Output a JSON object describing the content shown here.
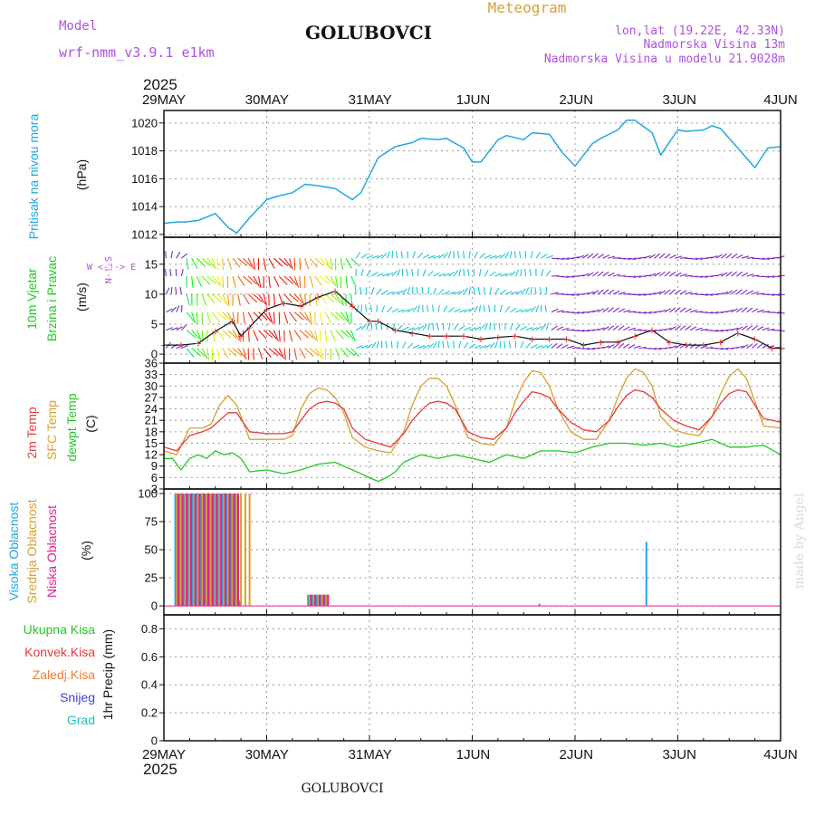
{
  "header": {
    "model_label": "Model",
    "model_value": "wrf-nmm_v3.9.1 e1km",
    "station": "GOLUBOVCI",
    "product": "Meteogram",
    "coords": "lon,lat (19.22E, 42.33N)",
    "elevation": "Nadmorska Visina 13m",
    "model_elevation": "Nadmorska Visina u modelu 21.9028m",
    "year": "2025",
    "footer_station": "GOLUBOVCI",
    "credit": "made by Angel"
  },
  "colors": {
    "pressure": "#1fa8e0",
    "temp2m": "#e83838",
    "sfc": "#d8a030",
    "dewpoint": "#22c822",
    "high_cloud": "#1fa8e0",
    "mid_cloud": "#d8a030",
    "low_cloud": "#e02090",
    "precip_total": "#22c822",
    "precip_conv": "#e83838",
    "precip_frozen": "#f07f30",
    "snow": "#4040e0",
    "graupel": "#20c0c0",
    "wind_legend": "#b050e0"
  },
  "x_axis": {
    "top_labels": [
      "29MAY",
      "30MAY",
      "31MAY",
      "1JUN",
      "2JUN",
      "3JUN",
      "4JUN"
    ],
    "bottom_labels": [
      "29MAY",
      "30MAY",
      "31MAY",
      "1JUN",
      "2JUN",
      "3JUN",
      "4JUN"
    ],
    "hours_total": 144
  },
  "panels": {
    "pressure": {
      "ylabel_a": "Pritisak na nivou mora",
      "ylabel_b": "(hPa)",
      "ticks": [
        "1012",
        "1014",
        "1016",
        "1018",
        "1020"
      ]
    },
    "wind": {
      "ylabel_a": "10m Vjetar",
      "ylabel_b": "Brzina i Pravac",
      "ylabel_c": "(m/s)",
      "legend_compass": "W <-!-> E",
      "legend_ns": "N-!-S",
      "ticks": [
        "0",
        "5",
        "10",
        "15"
      ]
    },
    "temperature": {
      "ylabel_a": "2m Temp",
      "ylabel_b": "SFC Temp",
      "ylabel_c": "dewpt Temp",
      "ylabel_d": "(C)",
      "ticks": [
        "3",
        "6",
        "9",
        "12",
        "15",
        "18",
        "21",
        "24",
        "27",
        "30",
        "33",
        "36"
      ]
    },
    "cloud": {
      "ylabel_a": "Visoka Oblacnost",
      "ylabel_b": "Srednja Oblacnost",
      "ylabel_c": "Niska Oblacnost",
      "ylabel_d": "(%)",
      "ticks": [
        "0",
        "25",
        "50",
        "75",
        "100"
      ]
    },
    "precip": {
      "legend": [
        "Ukupna Kisa",
        "Konvek.Kisa",
        "Zaledj.Kisa",
        "Snijeg",
        "Grad"
      ],
      "ylabel": "1hr Precip (mm)",
      "ticks": [
        "0",
        "0.2",
        "0.4",
        "0.6",
        "0.8"
      ]
    }
  },
  "chart_data": [
    {
      "type": "line",
      "title": "Pritisak na nivou mora",
      "ylabel": "(hPa)",
      "x_unit": "hours from 29MAY 00UTC",
      "ylim": [
        1011.8,
        1020.9
      ],
      "series": [
        {
          "x": [
            0,
            3,
            5,
            8,
            12,
            15,
            17,
            20,
            24,
            26,
            30,
            33,
            36,
            40,
            44,
            46,
            50,
            54,
            58,
            60,
            64,
            66,
            70,
            72,
            74,
            78,
            80,
            84,
            86,
            90,
            93,
            96,
            100,
            102,
            106,
            108,
            110,
            114,
            116,
            120,
            122,
            126,
            128,
            130,
            134,
            138,
            141,
            144
          ],
          "y": [
            1012.8,
            1012.9,
            1012.9,
            1013.0,
            1013.5,
            1012.5,
            1012.1,
            1013.2,
            1014.5,
            1014.7,
            1015.0,
            1015.6,
            1015.5,
            1015.3,
            1014.5,
            1015.0,
            1017.5,
            1018.3,
            1018.6,
            1018.9,
            1018.8,
            1018.9,
            1018.2,
            1017.2,
            1017.2,
            1018.8,
            1019.1,
            1018.8,
            1019.3,
            1019.2,
            1017.9,
            1016.9,
            1018.5,
            1018.9,
            1019.5,
            1020.2,
            1020.2,
            1019.3,
            1017.7,
            1019.5,
            1019.4,
            1019.5,
            1019.8,
            1019.6,
            1018.2,
            1016.8,
            1018.2,
            1018.3
          ]
        }
      ]
    },
    {
      "type": "line",
      "title": "10m Vjetar Brzina i Pravac",
      "ylabel": "(m/s)",
      "x_unit": "hours from 29MAY 00UTC",
      "ylim": [
        -1.5,
        19.5
      ],
      "series": [
        {
          "name": "wind speed",
          "x": [
            0,
            4,
            8,
            12,
            16,
            18,
            20,
            24,
            28,
            32,
            36,
            40,
            44,
            48,
            50,
            54,
            58,
            62,
            66,
            70,
            74,
            78,
            82,
            86,
            90,
            94,
            98,
            102,
            106,
            110,
            114,
            118,
            122,
            126,
            130,
            134,
            138,
            142,
            144
          ],
          "y": [
            1.5,
            1.5,
            1.8,
            3.8,
            5.5,
            3.0,
            4.5,
            7.5,
            8.5,
            8.0,
            9.5,
            10.5,
            8.0,
            5.5,
            5.5,
            4.0,
            3.5,
            3.0,
            3.0,
            3.0,
            2.5,
            2.8,
            3.0,
            2.5,
            2.5,
            2.5,
            1.5,
            2.0,
            2.0,
            3.0,
            4.0,
            2.0,
            1.5,
            1.5,
            2.0,
            3.5,
            2.5,
            1.0,
            1.0
          ]
        }
      ]
    },
    {
      "type": "line",
      "title": "2m Temp / SFC Temp / dewpt Temp",
      "ylabel": "(C)",
      "x_unit": "hours from 29MAY 00UTC",
      "ylim": [
        3,
        36
      ],
      "series": [
        {
          "name": "2m Temp",
          "x": [
            0,
            3,
            6,
            9,
            11,
            13,
            15,
            17,
            20,
            24,
            28,
            30,
            32,
            34,
            36,
            38,
            40,
            42,
            44,
            47,
            50,
            53,
            56,
            58,
            60,
            62,
            64,
            66,
            68,
            71,
            74,
            77,
            80,
            82,
            84,
            86,
            88,
            90,
            92,
            95,
            98,
            101,
            104,
            106,
            108,
            110,
            112,
            114,
            116,
            119,
            122,
            125,
            128,
            130,
            132,
            134,
            136,
            138,
            140,
            144
          ],
          "y": [
            14,
            13,
            17,
            18,
            19,
            21,
            23,
            23,
            18,
            17.5,
            17.5,
            18,
            21,
            24,
            25.5,
            26,
            25.5,
            24,
            19,
            16,
            15,
            14,
            17.5,
            21,
            23.5,
            25.5,
            26,
            25.5,
            24,
            18,
            16.5,
            16,
            19,
            23,
            26,
            28.5,
            28,
            27,
            24,
            20.5,
            18.5,
            18,
            21,
            24.5,
            27.5,
            29,
            28.5,
            27,
            24,
            21,
            19.5,
            18.5,
            22,
            25.5,
            28,
            29,
            28.5,
            25,
            21.5,
            20.5
          ]
        },
        {
          "name": "SFC Temp",
          "x": [
            0,
            3,
            6,
            9,
            11,
            13,
            15,
            17,
            20,
            24,
            28,
            30,
            32,
            34,
            36,
            38,
            40,
            42,
            44,
            47,
            50,
            53,
            56,
            58,
            60,
            62,
            64,
            66,
            68,
            71,
            74,
            77,
            80,
            82,
            84,
            86,
            88,
            90,
            92,
            95,
            98,
            101,
            104,
            106,
            108,
            110,
            112,
            114,
            116,
            119,
            122,
            125,
            128,
            130,
            132,
            134,
            136,
            138,
            140,
            144
          ],
          "y": [
            13,
            12,
            19,
            19,
            20,
            25,
            27.5,
            25,
            16,
            16,
            16,
            17,
            24,
            28,
            29.5,
            29,
            27,
            23,
            16.5,
            14,
            13,
            12.5,
            18,
            25,
            30,
            32,
            32,
            30,
            25,
            16.5,
            15,
            14.5,
            19,
            26,
            31,
            34,
            33.5,
            30,
            24,
            18,
            16,
            16,
            21,
            27,
            32,
            34.5,
            33.5,
            30,
            22,
            18.5,
            17.5,
            17,
            22,
            28,
            32.5,
            34.5,
            32,
            26,
            19.5,
            19
          ]
        },
        {
          "name": "dewpt Temp",
          "x": [
            0,
            2,
            4,
            6,
            8,
            10,
            12,
            14,
            16,
            18,
            20,
            24,
            28,
            32,
            36,
            40,
            44,
            48,
            50,
            52,
            54,
            56,
            60,
            64,
            68,
            72,
            76,
            80,
            84,
            88,
            92,
            96,
            100,
            104,
            108,
            112,
            116,
            120,
            124,
            128,
            132,
            136,
            140,
            144
          ],
          "y": [
            11,
            11,
            8,
            11,
            12,
            11,
            13,
            12,
            12.5,
            11,
            7.5,
            8,
            7,
            8,
            9.5,
            10,
            8,
            6,
            5,
            6,
            7.5,
            10,
            12,
            11,
            12,
            11,
            10,
            12,
            11,
            13,
            13,
            12.5,
            14,
            15,
            15,
            14.5,
            15,
            14,
            15,
            16,
            14,
            14,
            14.5,
            12
          ]
        }
      ]
    },
    {
      "type": "bar",
      "title": "Oblacnost",
      "ylabel": "(%)",
      "x_unit": "hours from 29MAY 00UTC",
      "ylim": [
        0,
        100
      ],
      "series": [
        {
          "name": "Visoka Oblacnost",
          "x": [
            3,
            4,
            5,
            6,
            7,
            8,
            9,
            10,
            11,
            12,
            13,
            14,
            15,
            16,
            17,
            18,
            34,
            35,
            36,
            37,
            38,
            88,
            113
          ],
          "y": [
            100,
            100,
            100,
            100,
            100,
            100,
            100,
            100,
            100,
            100,
            100,
            100,
            100,
            100,
            100,
            5,
            10,
            10,
            10,
            10,
            10,
            2,
            57
          ]
        },
        {
          "name": "Srednja Oblacnost",
          "x": [
            3,
            4,
            5,
            6,
            7,
            8,
            9,
            10,
            11,
            12,
            13,
            14,
            15,
            16,
            17,
            18,
            19,
            20,
            34,
            35,
            36,
            37,
            38
          ],
          "y": [
            100,
            100,
            100,
            100,
            100,
            100,
            100,
            100,
            100,
            100,
            100,
            100,
            100,
            100,
            100,
            100,
            100,
            100,
            10,
            10,
            10,
            10,
            10
          ]
        },
        {
          "name": "Niska Oblacnost",
          "x": [
            3,
            4,
            5,
            6,
            7,
            8,
            9,
            10,
            11,
            12,
            13,
            14,
            15,
            16,
            17,
            34,
            35,
            36,
            37,
            38
          ],
          "y": [
            100,
            100,
            100,
            100,
            100,
            100,
            100,
            100,
            100,
            100,
            100,
            100,
            100,
            100,
            100,
            10,
            10,
            10,
            10,
            10
          ]
        }
      ]
    },
    {
      "type": "bar",
      "title": "1hr Precip",
      "ylabel": "1hr Precip (mm)",
      "x_unit": "hours from 29MAY 00UTC",
      "ylim": [
        0,
        0.9
      ],
      "series": [
        {
          "name": "Ukupna Kisa",
          "x": [],
          "y": []
        },
        {
          "name": "Konvek.Kisa",
          "x": [],
          "y": []
        },
        {
          "name": "Zaledj.Kisa",
          "x": [],
          "y": []
        },
        {
          "name": "Snijeg",
          "x": [],
          "y": []
        },
        {
          "name": "Grad",
          "x": [],
          "y": []
        }
      ]
    }
  ]
}
